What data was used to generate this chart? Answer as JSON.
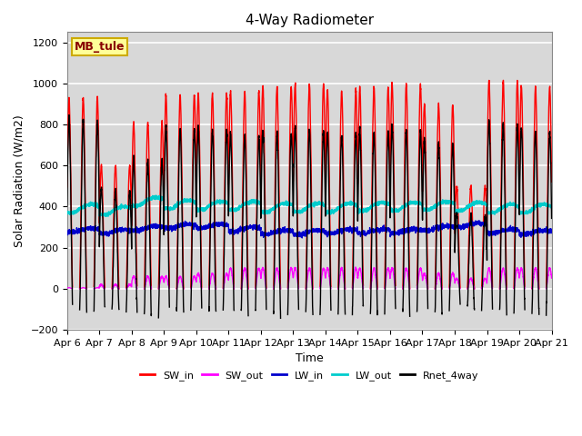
{
  "title": "4-Way Radiometer",
  "xlabel": "Time",
  "ylabel": "Solar Radiation (W/m2)",
  "ylim": [
    -200,
    1250
  ],
  "xlim_days": [
    6,
    21
  ],
  "x_tick_labels": [
    "Apr 6",
    "Apr 7",
    "Apr 8",
    "Apr 9",
    "Apr 10",
    "Apr 11",
    "Apr 12",
    "Apr 13",
    "Apr 14",
    "Apr 15",
    "Apr 16",
    "Apr 17",
    "Apr 18",
    "Apr 19",
    "Apr 20",
    "Apr 21"
  ],
  "station_label": "MB_tule",
  "station_label_color": "#880000",
  "station_box_color": "#FFFF99",
  "station_box_edge": "#CCAA00",
  "background_color": "#E8E8E8",
  "plot_bg_color": "#D8D8D8",
  "grid_color": "#FFFFFF",
  "series_SW_in_color": "#FF0000",
  "series_SW_out_color": "#FF00FF",
  "series_LW_in_color": "#0000CC",
  "series_LW_out_color": "#00CCCC",
  "series_Rnet_color": "#000000",
  "series_lw": 1.0,
  "legend_entries": [
    "SW_in",
    "SW_out",
    "LW_in",
    "LW_out",
    "Rnet_4way"
  ],
  "legend_colors": [
    "#FF0000",
    "#FF00FF",
    "#0000CC",
    "#00CCCC",
    "#000000"
  ],
  "sw_in_peaks": [
    930,
    600,
    810,
    940,
    950,
    960,
    985,
    995,
    965,
    980,
    995,
    895,
    500,
    1015,
    985
  ],
  "sw_out_peaks": [
    5,
    20,
    60,
    60,
    75,
    100,
    100,
    100,
    100,
    100,
    100,
    75,
    50,
    100,
    100
  ],
  "lw_in_base": [
    275,
    268,
    285,
    295,
    295,
    280,
    265,
    265,
    270,
    270,
    270,
    285,
    300,
    270,
    265
  ],
  "lw_out_base": [
    370,
    360,
    405,
    390,
    385,
    385,
    375,
    375,
    375,
    380,
    380,
    385,
    380,
    370,
    370
  ],
  "n_days": 15,
  "n_per_day": 288,
  "day_start": 6,
  "night_rnet": -100
}
